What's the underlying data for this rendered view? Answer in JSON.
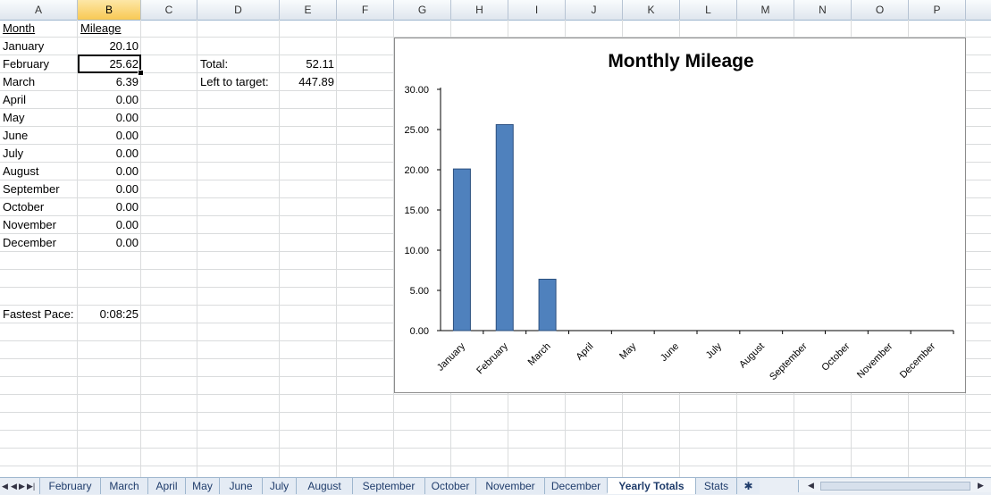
{
  "columns": [
    "A",
    "B",
    "C",
    "D",
    "E",
    "F",
    "G",
    "H",
    "I",
    "J",
    "K",
    "L",
    "M",
    "N",
    "O",
    "P"
  ],
  "active_column": "B",
  "cells": {
    "month_header": "Month",
    "mileage_header": "Mileage",
    "months": [
      "January",
      "February",
      "March",
      "April",
      "May",
      "June",
      "July",
      "August",
      "September",
      "October",
      "November",
      "December"
    ],
    "mileages": [
      "20.10",
      "25.62",
      "6.39",
      "0.00",
      "0.00",
      "0.00",
      "0.00",
      "0.00",
      "0.00",
      "0.00",
      "0.00",
      "0.00"
    ],
    "total_label": "Total:",
    "total_value": "52.11",
    "left_label": "Left to target:",
    "left_value": "447.89",
    "fastest_label": "Fastest Pace:",
    "fastest_value": "0:08:25"
  },
  "chart_data": {
    "type": "bar",
    "title": "Monthly Mileage",
    "categories": [
      "January",
      "February",
      "March",
      "April",
      "May",
      "June",
      "July",
      "August",
      "September",
      "October",
      "November",
      "December"
    ],
    "values": [
      20.1,
      25.62,
      6.39,
      0,
      0,
      0,
      0,
      0,
      0,
      0,
      0,
      0
    ],
    "ylim": [
      0,
      30
    ],
    "yticks": [
      "0.00",
      "5.00",
      "10.00",
      "15.00",
      "20.00",
      "25.00",
      "30.00"
    ],
    "bar_color": "#4f81bd",
    "bar_edge": "#2b4f7e",
    "grid": false,
    "legend": "none"
  },
  "tabs": [
    "February",
    "March",
    "April",
    "May",
    "June",
    "July",
    "August",
    "September",
    "October",
    "November",
    "December",
    "Yearly Totals",
    "Stats"
  ],
  "active_tab": "Yearly Totals",
  "nav_icons": [
    "first-sheet-icon",
    "prev-sheet-icon",
    "next-sheet-icon",
    "last-sheet-icon"
  ]
}
